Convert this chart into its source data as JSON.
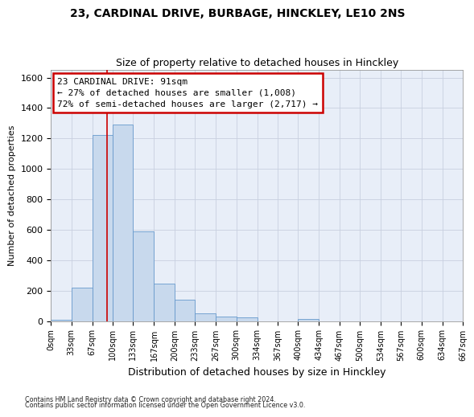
{
  "title_line1": "23, CARDINAL DRIVE, BURBAGE, HINCKLEY, LE10 2NS",
  "title_line2": "Size of property relative to detached houses in Hinckley",
  "xlabel": "Distribution of detached houses by size in Hinckley",
  "ylabel": "Number of detached properties",
  "bar_color": "#c8d9ed",
  "bar_edge_color": "#6699cc",
  "bin_edges": [
    0,
    33,
    67,
    100,
    133,
    167,
    200,
    233,
    267,
    300,
    334,
    367,
    400,
    434,
    467,
    500,
    534,
    567,
    600,
    634,
    667
  ],
  "bar_values": [
    10,
    220,
    1220,
    1290,
    590,
    245,
    138,
    52,
    30,
    25,
    0,
    0,
    15,
    0,
    0,
    0,
    0,
    0,
    0,
    0
  ],
  "tick_labels": [
    "0sqm",
    "33sqm",
    "67sqm",
    "100sqm",
    "133sqm",
    "167sqm",
    "200sqm",
    "233sqm",
    "267sqm",
    "300sqm",
    "334sqm",
    "367sqm",
    "400sqm",
    "434sqm",
    "467sqm",
    "500sqm",
    "534sqm",
    "567sqm",
    "600sqm",
    "634sqm",
    "667sqm"
  ],
  "ylim": [
    0,
    1650
  ],
  "yticks": [
    0,
    200,
    400,
    600,
    800,
    1000,
    1200,
    1400,
    1600
  ],
  "property_line_x": 91,
  "annotation_line1": "23 CARDINAL DRIVE: 91sqm",
  "annotation_line2": "← 27% of detached houses are smaller (1,008)",
  "annotation_line3": "72% of semi-detached houses are larger (2,717) →",
  "annotation_box_color": "#ffffff",
  "annotation_box_edge": "#cc0000",
  "marker_line_color": "#cc0000",
  "grid_color": "#c8d0e0",
  "background_color": "#e8eef8",
  "footer_line1": "Contains HM Land Registry data © Crown copyright and database right 2024.",
  "footer_line2": "Contains public sector information licensed under the Open Government Licence v3.0."
}
